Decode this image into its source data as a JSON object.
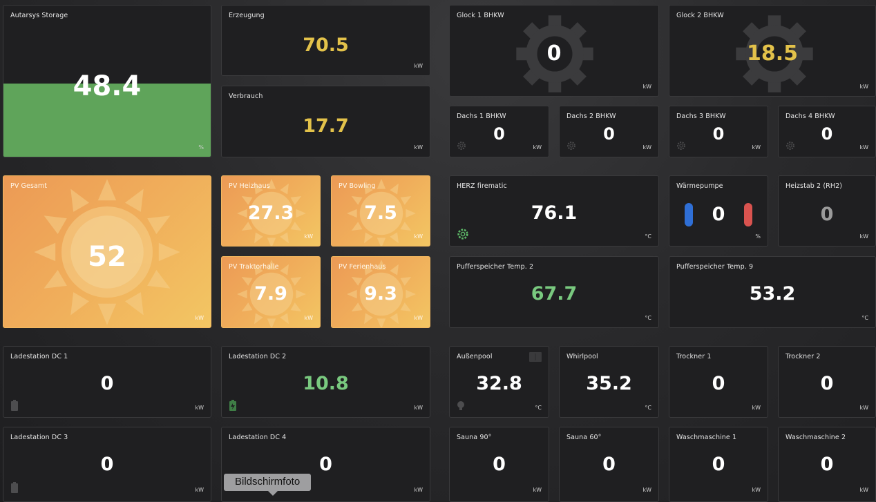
{
  "tiles": {
    "autarsys": {
      "title": "Autarsys Storage",
      "value": "48.4",
      "unit": "%",
      "fill_percent": 48.4,
      "fill_color": "#5fa45a"
    },
    "erzeugung": {
      "title": "Erzeugung",
      "value": "70.5",
      "unit": "kW"
    },
    "verbrauch": {
      "title": "Verbrauch",
      "value": "17.7",
      "unit": "kW"
    },
    "glock1": {
      "title": "Glock 1 BHKW",
      "value": "0",
      "unit": "kW"
    },
    "glock2": {
      "title": "Glock 2 BHKW",
      "value": "18.5",
      "unit": "kW"
    },
    "dachs1": {
      "title": "Dachs 1 BHKW",
      "value": "0",
      "unit": "kW"
    },
    "dachs2": {
      "title": "Dachs 2 BHKW",
      "value": "0",
      "unit": "kW"
    },
    "dachs3": {
      "title": "Dachs 3 BHKW",
      "value": "0",
      "unit": "kW"
    },
    "dachs4": {
      "title": "Dachs 4 BHKW",
      "value": "0",
      "unit": "kW"
    },
    "pv_gesamt": {
      "title": "PV Gesamt",
      "value": "52",
      "unit": "kW"
    },
    "pv_heizhaus": {
      "title": "PV Heizhaus",
      "value": "27.3",
      "unit": "kW"
    },
    "pv_bowling": {
      "title": "PV Bowling",
      "value": "7.5",
      "unit": "kW"
    },
    "pv_traktorhalle": {
      "title": "PV Traktorhalle",
      "value": "7.9",
      "unit": "kW"
    },
    "pv_ferienhaus": {
      "title": "PV Ferienhaus",
      "value": "9.3",
      "unit": "kW"
    },
    "herz": {
      "title": "HERZ firematic",
      "value": "76.1",
      "unit": "°C"
    },
    "waermepumpe": {
      "title": "Wärmepumpe",
      "value": "0",
      "unit": "%"
    },
    "heizstab2": {
      "title": "Heizstab 2 (RH2)",
      "value": "0",
      "unit": "kW"
    },
    "puffer2": {
      "title": "Pufferspeicher Temp. 2",
      "value": "67.7",
      "unit": "°C"
    },
    "puffer9": {
      "title": "Pufferspeicher Temp. 9",
      "value": "53.2",
      "unit": "°C"
    },
    "lade_dc1": {
      "title": "Ladestation DC 1",
      "value": "0",
      "unit": "kW"
    },
    "lade_dc2": {
      "title": "Ladestation DC 2",
      "value": "10.8",
      "unit": "kW"
    },
    "lade_dc3": {
      "title": "Ladestation DC 3",
      "value": "0",
      "unit": "kW"
    },
    "lade_dc4": {
      "title": "Ladestation DC 4",
      "value": "0",
      "unit": "kW"
    },
    "aussenpool": {
      "title": "Außenpool",
      "value": "32.8",
      "unit": "°C"
    },
    "whirlpool": {
      "title": "Whirlpool",
      "value": "35.2",
      "unit": "°C"
    },
    "trockner1": {
      "title": "Trockner 1",
      "value": "0",
      "unit": "kW"
    },
    "trockner2": {
      "title": "Trockner 2",
      "value": "0",
      "unit": "kW"
    },
    "sauna90": {
      "title": "Sauna 90°",
      "value": "0",
      "unit": "kW"
    },
    "sauna60": {
      "title": "Sauna 60°",
      "value": "0",
      "unit": "kW"
    },
    "wasch1": {
      "title": "Waschmaschine 1",
      "value": "0",
      "unit": "kW"
    },
    "wasch2": {
      "title": "Waschmaschine 2",
      "value": "0",
      "unit": "kW"
    }
  },
  "tooltip": {
    "label": "Bildschirmfoto"
  },
  "colors": {
    "accent_yellow": "#e3c24a",
    "accent_green": "#79c97f",
    "tile_bg": "#1f1f21",
    "solar_orange": "#f0ae5b",
    "cool_blue": "#2f6fd6",
    "hot_red": "#d9534f"
  }
}
